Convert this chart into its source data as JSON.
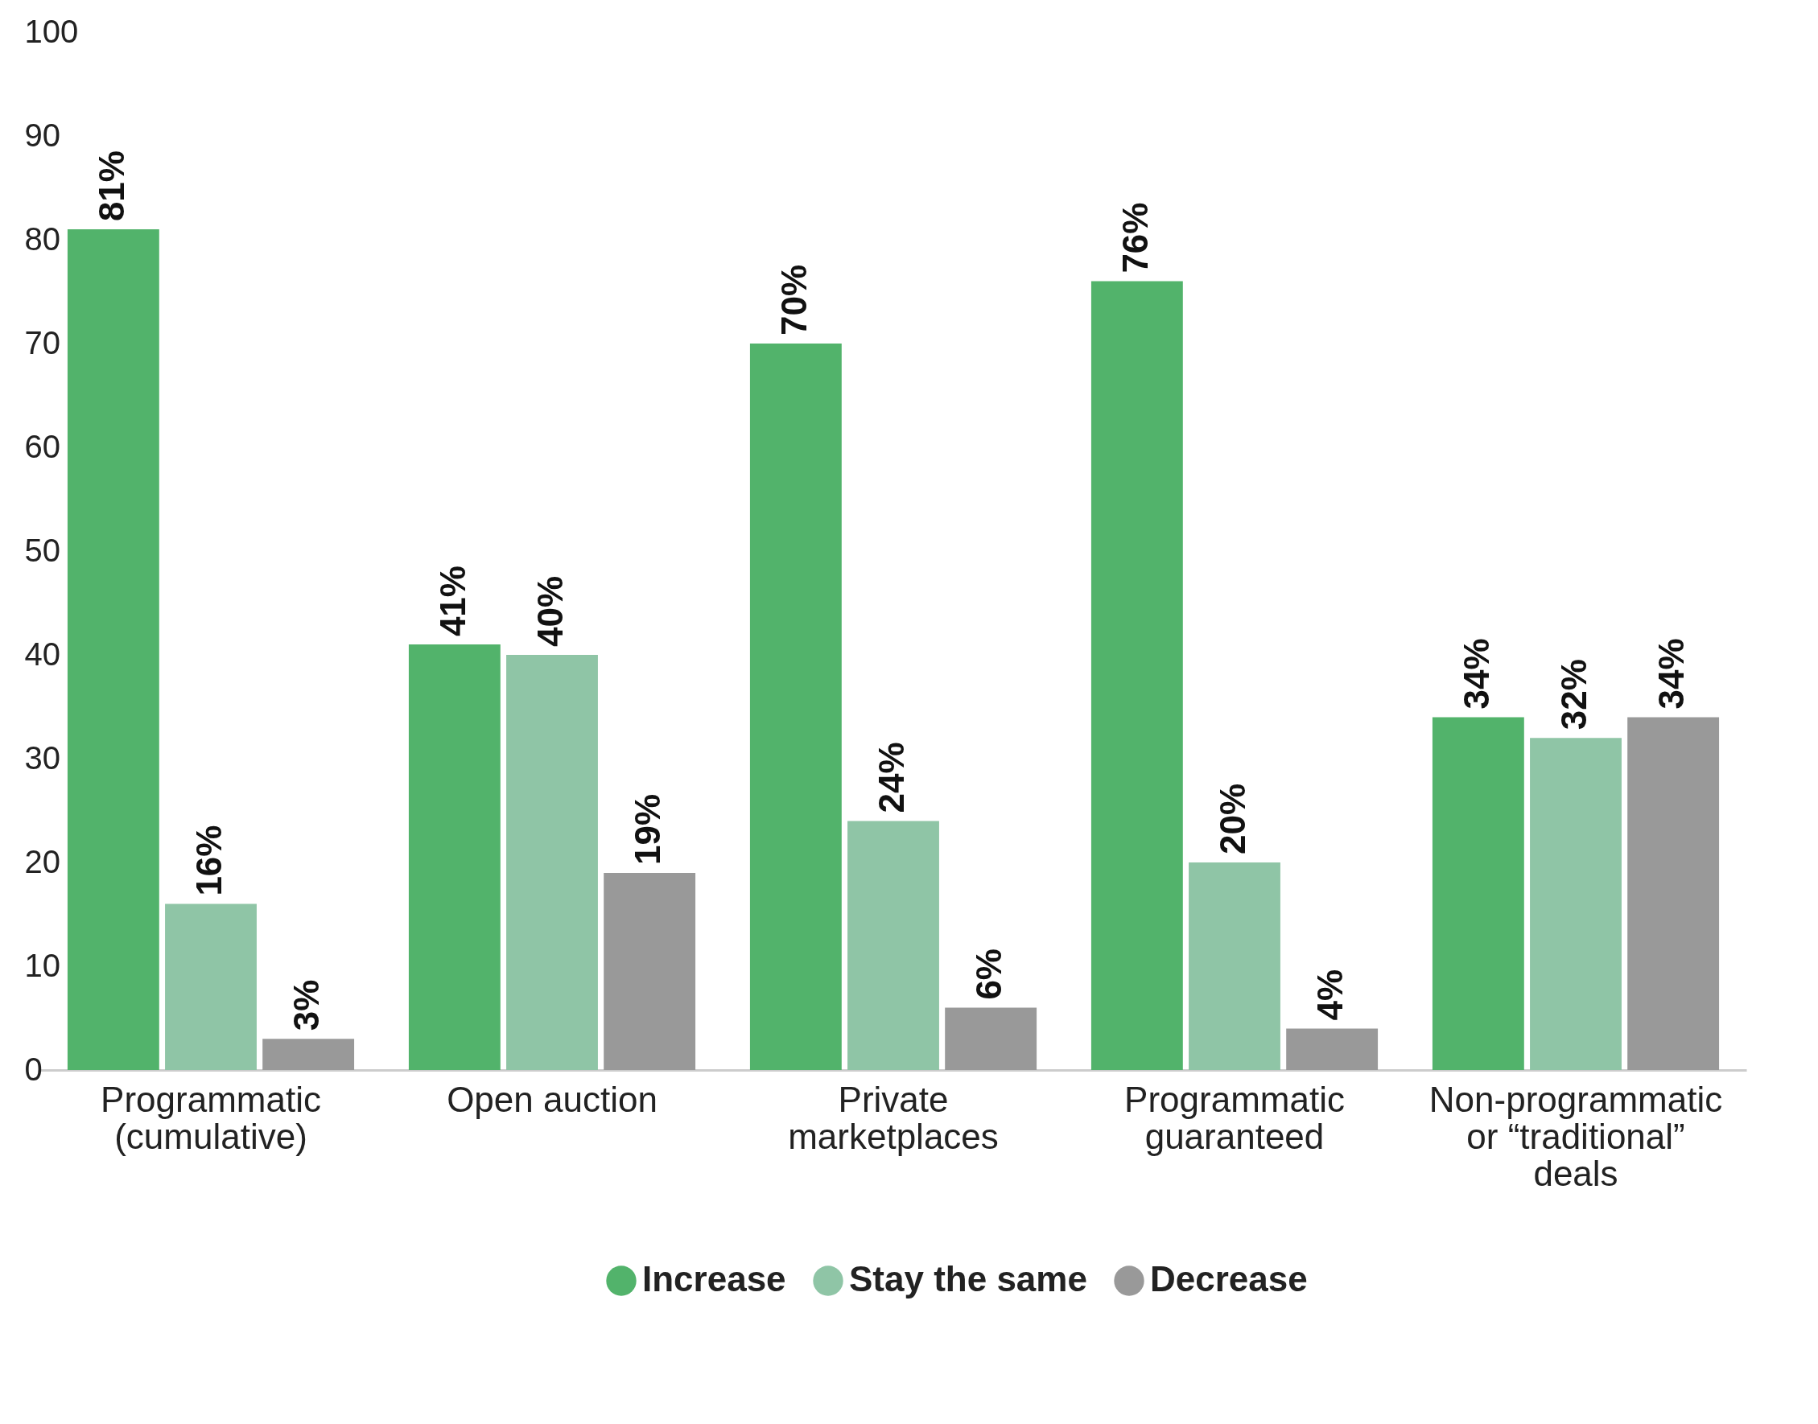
{
  "chart_data": {
    "type": "bar",
    "categories": [
      "Programmatic (cumulative)",
      "Open auction",
      "Private marketplaces",
      "Programmatic guaranteed",
      "Non-programmatic or “traditional” deals"
    ],
    "series": [
      {
        "name": "Increase",
        "color": "#52b36b",
        "values": [
          81,
          41,
          70,
          76,
          34
        ],
        "value_labels": [
          "81%",
          "41%",
          "70%",
          "76%",
          "34%"
        ]
      },
      {
        "name": "Stay the same",
        "color": "#8fc5a6",
        "values": [
          16,
          40,
          24,
          20,
          32
        ],
        "value_labels": [
          "16%",
          "40%",
          "24%",
          "20%",
          "32%"
        ]
      },
      {
        "name": "Decrease",
        "color": "#999999",
        "values": [
          3,
          19,
          6,
          4,
          34
        ],
        "value_labels": [
          "3%",
          "19%",
          "6%",
          "4%",
          "34%"
        ]
      }
    ],
    "ylim": [
      0,
      100
    ],
    "yticks": [
      0,
      10,
      20,
      30,
      40,
      50,
      60,
      70,
      80,
      90,
      100
    ],
    "grid": false,
    "legend": "bottom"
  }
}
